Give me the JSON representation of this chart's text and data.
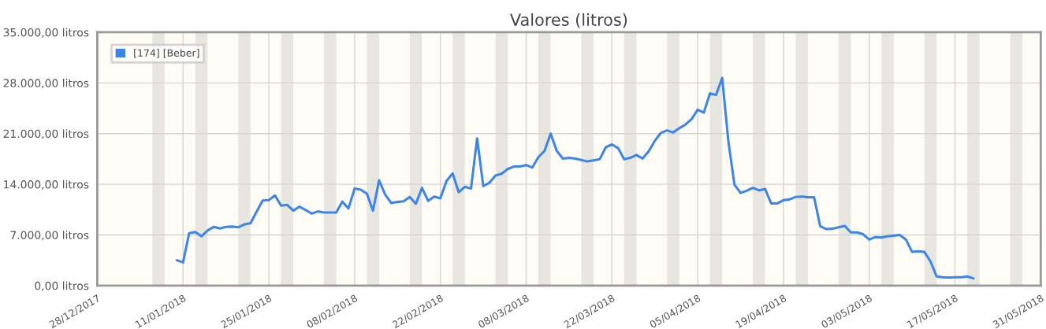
{
  "chart_data": {
    "type": "line",
    "title": "Valores (litros)",
    "x": [
      "2018-01-10",
      "2018-01-11",
      "2018-01-12",
      "2018-01-13",
      "2018-01-14",
      "2018-01-15",
      "2018-01-16",
      "2018-01-17",
      "2018-01-18",
      "2018-01-19",
      "2018-01-20",
      "2018-01-21",
      "2018-01-22",
      "2018-01-23",
      "2018-01-24",
      "2018-01-25",
      "2018-01-26",
      "2018-01-27",
      "2018-01-28",
      "2018-01-29",
      "2018-01-30",
      "2018-01-31",
      "2018-02-01",
      "2018-02-02",
      "2018-02-03",
      "2018-02-04",
      "2018-02-05",
      "2018-02-06",
      "2018-02-07",
      "2018-02-08",
      "2018-02-09",
      "2018-02-10",
      "2018-02-11",
      "2018-02-12",
      "2018-02-13",
      "2018-02-14",
      "2018-02-15",
      "2018-02-16",
      "2018-02-17",
      "2018-02-18",
      "2018-02-19",
      "2018-02-20",
      "2018-02-21",
      "2018-02-22",
      "2018-02-23",
      "2018-02-24",
      "2018-02-25",
      "2018-02-26",
      "2018-02-27",
      "2018-02-28",
      "2018-03-01",
      "2018-03-02",
      "2018-03-03",
      "2018-03-04",
      "2018-03-05",
      "2018-03-06",
      "2018-03-07",
      "2018-03-08",
      "2018-03-09",
      "2018-03-10",
      "2018-03-11",
      "2018-03-12",
      "2018-03-13",
      "2018-03-14",
      "2018-03-15",
      "2018-03-16",
      "2018-03-17",
      "2018-03-18",
      "2018-03-19",
      "2018-03-20",
      "2018-03-21",
      "2018-03-22",
      "2018-03-23",
      "2018-03-24",
      "2018-03-25",
      "2018-03-26",
      "2018-03-27",
      "2018-03-28",
      "2018-03-29",
      "2018-03-30",
      "2018-03-31",
      "2018-04-01",
      "2018-04-02",
      "2018-04-03",
      "2018-04-04",
      "2018-04-05",
      "2018-04-06",
      "2018-04-07",
      "2018-04-08",
      "2018-04-09",
      "2018-04-10",
      "2018-04-11",
      "2018-04-12",
      "2018-04-13",
      "2018-04-14",
      "2018-04-15",
      "2018-04-16",
      "2018-04-17",
      "2018-04-18",
      "2018-04-19",
      "2018-04-20",
      "2018-04-21",
      "2018-04-22",
      "2018-04-23",
      "2018-04-24",
      "2018-04-25",
      "2018-04-26",
      "2018-04-27",
      "2018-04-28",
      "2018-04-29",
      "2018-04-30",
      "2018-05-01",
      "2018-05-02",
      "2018-05-03",
      "2018-05-04",
      "2018-05-05",
      "2018-05-06",
      "2018-05-07",
      "2018-05-08",
      "2018-05-09",
      "2018-05-10",
      "2018-05-11",
      "2018-05-12",
      "2018-05-13",
      "2018-05-14",
      "2018-05-15",
      "2018-05-16",
      "2018-05-17",
      "2018-05-18",
      "2018-05-19",
      "2018-05-20"
    ],
    "series": [
      {
        "name": "[174] [Beber]",
        "color": "#3d85e6",
        "values": [
          3500,
          3200,
          7250,
          7400,
          6800,
          7600,
          8100,
          7900,
          8100,
          8150,
          8050,
          8450,
          8600,
          10200,
          11750,
          11800,
          12450,
          11050,
          11150,
          10350,
          10900,
          10450,
          9950,
          10250,
          10100,
          10100,
          10100,
          11600,
          10650,
          13400,
          13250,
          12700,
          10350,
          14550,
          12550,
          11400,
          11550,
          11650,
          12250,
          11300,
          13500,
          11700,
          12300,
          12050,
          14450,
          15500,
          12900,
          13650,
          13400,
          20350,
          13750,
          14200,
          15200,
          15450,
          16100,
          16450,
          16450,
          16650,
          16300,
          17750,
          18600,
          21000,
          18600,
          17550,
          17650,
          17550,
          17350,
          17150,
          17300,
          17450,
          19100,
          19500,
          19000,
          17450,
          17650,
          18050,
          17550,
          18550,
          20000,
          21100,
          21450,
          21150,
          21750,
          22250,
          23000,
          24300,
          23900,
          26550,
          26350,
          28700,
          20000,
          13950,
          12800,
          13100,
          13500,
          13150,
          13350,
          11350,
          11350,
          11800,
          11900,
          12250,
          12300,
          12200,
          12200,
          8200,
          7800,
          7850,
          8050,
          8250,
          7350,
          7350,
          7100,
          6350,
          6700,
          6650,
          6800,
          6900,
          7000,
          6350,
          4650,
          4750,
          4650,
          3350,
          1250,
          1150,
          1100,
          1150,
          1150,
          1250,
          1000
        ]
      }
    ],
    "xlim": [
      "2017-12-28",
      "2018-05-31"
    ],
    "xticks": [
      {
        "value": "2017-12-28",
        "label": "28/12/2017"
      },
      {
        "value": "2018-01-11",
        "label": "11/01/2018"
      },
      {
        "value": "2018-01-25",
        "label": "25/01/2018"
      },
      {
        "value": "2018-02-08",
        "label": "08/02/2018"
      },
      {
        "value": "2018-02-22",
        "label": "22/02/2018"
      },
      {
        "value": "2018-03-08",
        "label": "08/03/2018"
      },
      {
        "value": "2018-03-22",
        "label": "22/03/2018"
      },
      {
        "value": "2018-04-05",
        "label": "05/04/2018"
      },
      {
        "value": "2018-04-19",
        "label": "19/04/2018"
      },
      {
        "value": "2018-05-03",
        "label": "03/05/2018"
      },
      {
        "value": "2018-05-17",
        "label": "17/05/2018"
      },
      {
        "value": "2018-05-31",
        "label": "31/05/2018"
      }
    ],
    "ylim": [
      0,
      35000
    ],
    "yticks": [
      {
        "value": 0,
        "label": "0,00 litros"
      },
      {
        "value": 7000,
        "label": "7.000,00 litros"
      },
      {
        "value": 14000,
        "label": "14.000,00 litros"
      },
      {
        "value": 21000,
        "label": "21.000,00 litros"
      },
      {
        "value": 28000,
        "label": "28.000,00 litros"
      },
      {
        "value": 35000,
        "label": "35.000,00 litros"
      }
    ],
    "bands": [
      {
        "axis": "x",
        "from": "2018-01-06",
        "to": "2018-01-08",
        "color": "#e8e6e0"
      },
      {
        "axis": "x",
        "from": "2018-01-13",
        "to": "2018-01-15",
        "color": "#e8e6e0"
      },
      {
        "axis": "x",
        "from": "2018-01-20",
        "to": "2018-01-22",
        "color": "#e8e6e0"
      },
      {
        "axis": "x",
        "from": "2018-01-27",
        "to": "2018-01-29",
        "color": "#e8e6e0"
      },
      {
        "axis": "x",
        "from": "2018-02-03",
        "to": "2018-02-05",
        "color": "#e8e6e0"
      },
      {
        "axis": "x",
        "from": "2018-02-10",
        "to": "2018-02-12",
        "color": "#e8e6e0"
      },
      {
        "axis": "x",
        "from": "2018-02-17",
        "to": "2018-02-19",
        "color": "#e8e6e0"
      },
      {
        "axis": "x",
        "from": "2018-02-24",
        "to": "2018-02-26",
        "color": "#e8e6e0"
      },
      {
        "axis": "x",
        "from": "2018-03-03",
        "to": "2018-03-05",
        "color": "#e8e6e0"
      },
      {
        "axis": "x",
        "from": "2018-03-10",
        "to": "2018-03-12",
        "color": "#e8e6e0"
      },
      {
        "axis": "x",
        "from": "2018-03-17",
        "to": "2018-03-19",
        "color": "#e8e6e0"
      },
      {
        "axis": "x",
        "from": "2018-03-24",
        "to": "2018-03-26",
        "color": "#e8e6e0"
      },
      {
        "axis": "x",
        "from": "2018-03-31",
        "to": "2018-04-02",
        "color": "#e8e6e0"
      },
      {
        "axis": "x",
        "from": "2018-04-07",
        "to": "2018-04-09",
        "color": "#e8e6e0"
      },
      {
        "axis": "x",
        "from": "2018-04-14",
        "to": "2018-04-16",
        "color": "#e8e6e0"
      },
      {
        "axis": "x",
        "from": "2018-04-21",
        "to": "2018-04-23",
        "color": "#e8e6e0"
      },
      {
        "axis": "x",
        "from": "2018-04-28",
        "to": "2018-04-30",
        "color": "#e8e6e0"
      },
      {
        "axis": "x",
        "from": "2018-05-05",
        "to": "2018-05-07",
        "color": "#e8e6e0"
      },
      {
        "axis": "x",
        "from": "2018-05-12",
        "to": "2018-05-14",
        "color": "#e8e6e0"
      },
      {
        "axis": "x",
        "from": "2018-05-19",
        "to": "2018-05-21",
        "color": "#e8e6e0"
      },
      {
        "axis": "x",
        "from": "2018-05-26",
        "to": "2018-05-28",
        "color": "#e8e6e0"
      }
    ],
    "grid": true,
    "legend": "top left",
    "marker": "none",
    "line_style": "solid"
  }
}
